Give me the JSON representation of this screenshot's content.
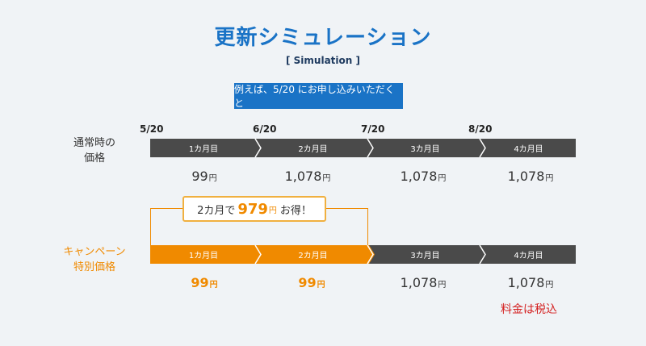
{
  "title": "更新シミュレーション",
  "subtitle": "[ Simulation ]",
  "example_button": "例えば、5/20 にお申し込みいただくと",
  "dates": [
    "5/20",
    "6/20",
    "7/20",
    "8/20"
  ],
  "regular": {
    "label_line1": "通常時の",
    "label_line2": "価格",
    "segments": [
      "1カ月目",
      "2カ月目",
      "3カ月目",
      "4カ月目"
    ],
    "prices": [
      "99",
      "1,078",
      "1,078",
      "1,078"
    ],
    "yen": "円"
  },
  "campaign": {
    "label_line1": "キャンペーン",
    "label_line2": "特別価格",
    "segments": [
      "1カ月目",
      "2カ月目",
      "3カ月目",
      "4カ月目"
    ],
    "prices": [
      "99",
      "99",
      "1,078",
      "1,078"
    ],
    "yen": "円"
  },
  "callout": {
    "prefix": "2カ月で",
    "amount": "979",
    "yen": "円",
    "suffix": "お得！"
  },
  "tax_note": "料金は税込",
  "colors": {
    "blue": "#1a73c6",
    "dark_bar": "#4a4a4a",
    "orange": "#f08a00",
    "red": "#d42020"
  }
}
